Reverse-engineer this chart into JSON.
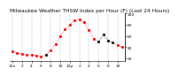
{
  "title": "Milwaukee Weather THSW Index per Hour (F) (Last 24 Hours)",
  "hours": [
    0,
    1,
    2,
    3,
    4,
    5,
    6,
    7,
    8,
    9,
    10,
    11,
    12,
    13,
    14,
    15,
    16,
    17,
    18,
    19,
    20,
    21,
    22,
    23
  ],
  "values": [
    32,
    30,
    28,
    27,
    26,
    25,
    24,
    26,
    34,
    45,
    60,
    72,
    80,
    88,
    90,
    84,
    70,
    55,
    50,
    62,
    52,
    48,
    44,
    40
  ],
  "color_flags": [
    1,
    1,
    1,
    1,
    1,
    1,
    1,
    0,
    1,
    1,
    1,
    1,
    1,
    1,
    1,
    1,
    1,
    1,
    0,
    0,
    0,
    0,
    1,
    1
  ],
  "red_color": "#ff0000",
  "black_color": "#000000",
  "bg_color": "#ffffff",
  "grid_color": "#999999",
  "ylim": [
    15,
    100
  ],
  "yticks": [
    20,
    40,
    60,
    80,
    100
  ],
  "ytick_labels": [
    "20",
    "40",
    "60",
    "80",
    "100"
  ],
  "xtick_positions": [
    0,
    2,
    4,
    6,
    8,
    10,
    12,
    14,
    16,
    18,
    20,
    22
  ],
  "xtick_labels": [
    "12a",
    "2",
    "4",
    "6",
    "8",
    "10",
    "12p",
    "2",
    "4",
    "6",
    "8",
    "10"
  ],
  "title_fontsize": 4.2,
  "tick_fontsize": 3.2,
  "line_width": 0.5,
  "marker_size": 1.2
}
